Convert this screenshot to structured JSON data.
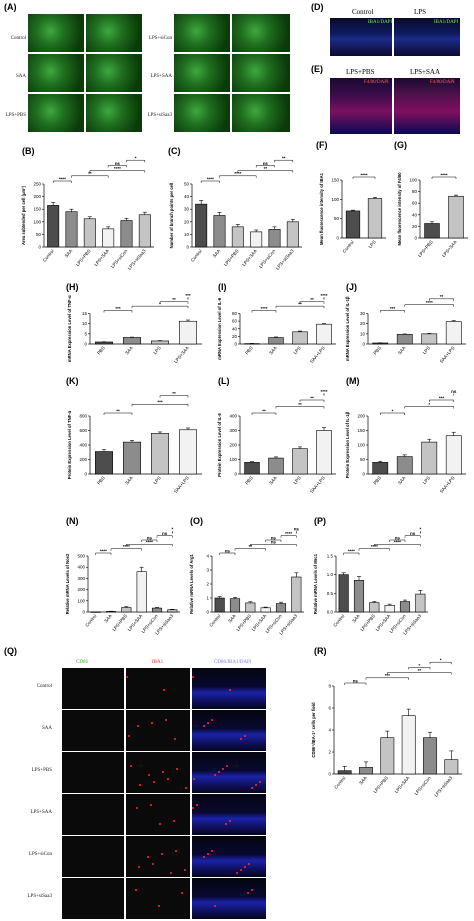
{
  "panels": {
    "A": "(A)",
    "B": "(B)",
    "C": "(C)",
    "D": "(D)",
    "E": "(E)",
    "F": "(F)",
    "G": "(G)",
    "H": "(H)",
    "I": "(I)",
    "J": "(J)",
    "K": "(K)",
    "L": "(L)",
    "M": "(M)",
    "N": "(N)",
    "O": "(O)",
    "P": "(P)",
    "Q": "(Q)",
    "R": "(R)"
  },
  "panel_a": {
    "left_rows": [
      "Control",
      "SAA",
      "LPS+PBS"
    ],
    "right_rows": [
      "LPS+siCon",
      "LPS+SAA",
      "LPS+siSaa3"
    ]
  },
  "panel_d": {
    "cols": [
      "Control",
      "LPS"
    ],
    "stain": "IBA1/DAPI"
  },
  "panel_e": {
    "cols": [
      "LPS+PBS",
      "LPS+SAA"
    ],
    "stain": "F4/80/DAPI"
  },
  "panel_q": {
    "cols": [
      "CD86",
      "IBA1",
      "CD86/IBA1/DAPI"
    ],
    "rows": [
      "Control",
      "SAA",
      "LPS+PBS",
      "LPS+SAA",
      "LPS+siCon",
      "LPS+siSaa3"
    ]
  },
  "colors": {
    "dark": "#4d4d4d",
    "mid": "#8c8c8c",
    "light": "#c4c4c4",
    "white": "#f2f2f2"
  },
  "chart_data": [
    {
      "id": "B",
      "type": "bar",
      "ylabel": "Area subtended per cell (μm²)",
      "categories": [
        "Control",
        "SAA",
        "LPS+PBS",
        "LPS+SAA",
        "LPS+siCon",
        "LPS+siSaa3"
      ],
      "values": [
        165,
        140,
        112,
        72,
        105,
        128
      ],
      "errors": [
        12,
        10,
        8,
        8,
        9,
        10
      ],
      "colors": [
        "#4d4d4d",
        "#8c8c8c",
        "#c4c4c4",
        "#f2f2f2",
        "#8c8c8c",
        "#c4c4c4"
      ],
      "ylim": [
        0,
        250
      ],
      "yticks": [
        "0",
        "50",
        "100",
        "150",
        "200",
        "250"
      ],
      "sig": [
        "****",
        "**",
        "****",
        "ns",
        "*"
      ]
    },
    {
      "id": "C",
      "type": "bar",
      "ylabel": "Number of branch points per cell",
      "categories": [
        "Control",
        "SAA",
        "LPS+PBS",
        "LPS+SAA",
        "LPS+siCon",
        "LPS+siSaa3"
      ],
      "values": [
        34,
        25,
        16,
        12,
        14,
        20
      ],
      "errors": [
        3,
        2.5,
        2,
        1.5,
        2,
        2
      ],
      "colors": [
        "#4d4d4d",
        "#8c8c8c",
        "#c4c4c4",
        "#f2f2f2",
        "#8c8c8c",
        "#c4c4c4"
      ],
      "ylim": [
        0,
        50
      ],
      "yticks": [
        "0",
        "10",
        "20",
        "30",
        "40",
        "50"
      ],
      "sig": [
        "****",
        "****",
        "**",
        "ns",
        "**"
      ]
    },
    {
      "id": "F",
      "type": "bar",
      "ylabel": "Mean fluorescence intensity of IBA1",
      "categories": [
        "Control",
        "LPS"
      ],
      "values": [
        70,
        102
      ],
      "errors": [
        2,
        3
      ],
      "colors": [
        "#4d4d4d",
        "#c4c4c4"
      ],
      "ylim": [
        0,
        150
      ],
      "yticks": [
        "0",
        "50",
        "100",
        "150"
      ],
      "sig": [
        "****"
      ]
    },
    {
      "id": "G",
      "type": "bar",
      "ylabel": "Mean fluorescence intensity of F4/80",
      "categories": [
        "LPS+PBS",
        "LPS+SAA"
      ],
      "values": [
        25,
        72
      ],
      "errors": [
        3,
        2
      ],
      "colors": [
        "#4d4d4d",
        "#c4c4c4"
      ],
      "ylim": [
        0,
        100
      ],
      "yticks": [
        "0",
        "20",
        "40",
        "60",
        "80",
        "100"
      ],
      "sig": [
        "****"
      ]
    },
    {
      "id": "H",
      "type": "bar",
      "ylabel": "mRNA Expression Level of TNF-α",
      "categories": [
        "PBS",
        "SAA",
        "LPS",
        "LPS+SAA"
      ],
      "values": [
        1.0,
        3.2,
        1.5,
        11.2
      ],
      "errors": [
        0.1,
        0.2,
        0.2,
        0.6
      ],
      "colors": [
        "#4d4d4d",
        "#8c8c8c",
        "#c4c4c4",
        "#f2f2f2"
      ],
      "ylim": [
        0,
        15
      ],
      "yticks": [
        "0",
        "5",
        "10",
        "15"
      ],
      "sig": [
        "***",
        "*",
        "**",
        "***"
      ]
    },
    {
      "id": "I",
      "type": "bar",
      "ylabel": "mRNA Expression Level of IL-6",
      "categories": [
        "PBS",
        "SAA",
        "LPS",
        "SAA+LPS"
      ],
      "values": [
        1,
        17,
        32,
        52
      ],
      "errors": [
        0.5,
        1.5,
        2,
        2
      ],
      "colors": [
        "#4d4d4d",
        "#8c8c8c",
        "#c4c4c4",
        "#f2f2f2"
      ],
      "ylim": [
        0,
        80
      ],
      "yticks": [
        "0",
        "20",
        "40",
        "60",
        "80"
      ],
      "sig": [
        "****",
        "**",
        "**",
        "****"
      ]
    },
    {
      "id": "J",
      "type": "bar",
      "ylabel": "mRNA Expression Level of IL-1β",
      "categories": [
        "PBS",
        "SAA",
        "LPS",
        "SAA+LPS"
      ],
      "values": [
        1,
        9.5,
        10,
        22
      ],
      "errors": [
        0.2,
        0.4,
        0.4,
        1
      ],
      "colors": [
        "#4d4d4d",
        "#8c8c8c",
        "#c4c4c4",
        "#f2f2f2"
      ],
      "ylim": [
        0,
        30
      ],
      "yticks": [
        "0",
        "10",
        "20",
        "30"
      ],
      "sig": [
        "***",
        "****",
        "**"
      ]
    },
    {
      "id": "K",
      "type": "bar",
      "ylabel": "Protein Expression Level of TNF-α",
      "categories": [
        "PBS",
        "SAA",
        "LPS",
        "SAA+LPS"
      ],
      "values": [
        310,
        440,
        560,
        610
      ],
      "errors": [
        25,
        25,
        20,
        25
      ],
      "colors": [
        "#4d4d4d",
        "#8c8c8c",
        "#c4c4c4",
        "#f2f2f2"
      ],
      "ylim": [
        0,
        800
      ],
      "yticks": [
        "0",
        "200",
        "400",
        "600",
        "800"
      ],
      "sig": [
        "**",
        "***",
        "**"
      ]
    },
    {
      "id": "L",
      "type": "bar",
      "ylabel": "Protein Expression Level of IL-6",
      "categories": [
        "PBS",
        "SAA",
        "LPS",
        "SAA+LPS"
      ],
      "values": [
        80,
        110,
        175,
        300
      ],
      "errors": [
        5,
        8,
        12,
        20
      ],
      "colors": [
        "#4d4d4d",
        "#8c8c8c",
        "#c4c4c4",
        "#f2f2f2"
      ],
      "ylim": [
        0,
        400
      ],
      "yticks": [
        "0",
        "100",
        "200",
        "300",
        "400"
      ],
      "sig": [
        "**",
        "**",
        "**",
        "****"
      ]
    },
    {
      "id": "M",
      "type": "bar",
      "ylabel": "Protein Expression Level of IL-1β",
      "categories": [
        "PBS",
        "SAA",
        "LPS",
        "SAA+LPS"
      ],
      "values": [
        40,
        60,
        110,
        132
      ],
      "errors": [
        4,
        6,
        10,
        12
      ],
      "colors": [
        "#4d4d4d",
        "#8c8c8c",
        "#c4c4c4",
        "#f2f2f2"
      ],
      "ylim": [
        0,
        200
      ],
      "yticks": [
        "0",
        "50",
        "100",
        "150",
        "200"
      ],
      "sig": [
        "*",
        "*",
        "***",
        "ns"
      ]
    },
    {
      "id": "N",
      "type": "bar",
      "ylabel": "Relative mRNA Levels of Nos2",
      "categories": [
        "Control",
        "SAA",
        "LPS+PBS",
        "LPS+SAA",
        "LPS+siCon",
        "LPS+siSaa3"
      ],
      "values": [
        1,
        5,
        40,
        360,
        35,
        20
      ],
      "errors": [
        0.5,
        2,
        8,
        40,
        6,
        4
      ],
      "colors": [
        "#4d4d4d",
        "#8c8c8c",
        "#c4c4c4",
        "#f2f2f2",
        "#8c8c8c",
        "#c4c4c4"
      ],
      "ylim": [
        0,
        500
      ],
      "yticks": [
        "0",
        "100",
        "200",
        "300",
        "400",
        "500"
      ],
      "sig": [
        "****",
        "****",
        "****",
        "ns",
        "ns",
        "*"
      ]
    },
    {
      "id": "O",
      "type": "bar",
      "ylabel": "Relative mRNA Levels of Arg1",
      "categories": [
        "Control",
        "SAA",
        "LPS+PBS",
        "LPS+SAA",
        "LPS+siCon",
        "LPS+siSaa3"
      ],
      "values": [
        1.0,
        0.95,
        0.65,
        0.3,
        0.6,
        2.5
      ],
      "errors": [
        0.1,
        0.1,
        0.08,
        0.05,
        0.1,
        0.3
      ],
      "colors": [
        "#4d4d4d",
        "#8c8c8c",
        "#c4c4c4",
        "#f2f2f2",
        "#8c8c8c",
        "#c4c4c4"
      ],
      "ylim": [
        0,
        4
      ],
      "yticks": [
        "0",
        "1",
        "2",
        "3",
        "4"
      ],
      "sig": [
        "ns",
        "**",
        "ns",
        "ns",
        "****",
        "ns"
      ]
    },
    {
      "id": "P",
      "type": "bar",
      "ylabel": "Relative mRNA Levels of Mrc1",
      "categories": [
        "Control",
        "SAA",
        "LPS+PBS",
        "LPS+SAA",
        "LPS+siCon",
        "LPS+siSaa3"
      ],
      "values": [
        1.0,
        0.85,
        0.25,
        0.18,
        0.28,
        0.48
      ],
      "errors": [
        0.05,
        0.1,
        0.03,
        0.03,
        0.04,
        0.1
      ],
      "colors": [
        "#4d4d4d",
        "#8c8c8c",
        "#c4c4c4",
        "#f2f2f2",
        "#8c8c8c",
        "#c4c4c4"
      ],
      "ylim": [
        0,
        1.5
      ],
      "yticks": [
        "0.0",
        "0.5",
        "1.0",
        "1.5"
      ],
      "sig": [
        "****",
        "****",
        "****",
        "ns",
        "ns",
        "*"
      ]
    },
    {
      "id": "R",
      "type": "bar",
      "ylabel": "CD86⁺/IBA-1⁺ cells per field",
      "categories": [
        "Control",
        "SAA",
        "LPS+PBS",
        "LPS+SAA",
        "LPS+siCon",
        "LPS+siSaa3"
      ],
      "values": [
        0.3,
        0.6,
        3.3,
        5.3,
        3.3,
        1.3
      ],
      "errors": [
        0.4,
        0.5,
        0.6,
        0.6,
        0.5,
        0.8
      ],
      "colors": [
        "#4d4d4d",
        "#8c8c8c",
        "#c4c4c4",
        "#f2f2f2",
        "#8c8c8c",
        "#c4c4c4"
      ],
      "ylim": [
        0,
        8
      ],
      "yticks": [
        "0",
        "2",
        "4",
        "6",
        "8"
      ],
      "sig": [
        "ns",
        "***",
        "**",
        "*",
        "*"
      ]
    }
  ]
}
